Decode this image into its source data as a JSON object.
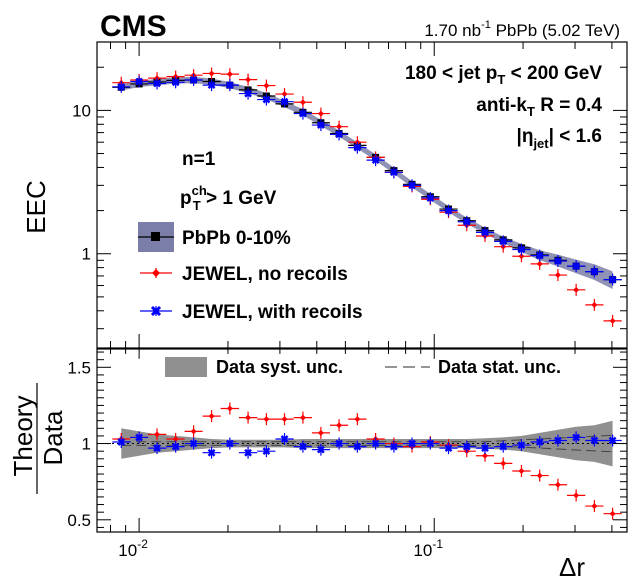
{
  "header": {
    "experiment": "CMS",
    "lumi_value": "1.70 nb",
    "lumi_exp": "-1",
    "lumi_rest": " PbPb (5.02 TeV)"
  },
  "annotations": {
    "pt_range_pre": "180 < jet p",
    "pt_range_sub": "T",
    "pt_range_post": " < 200 GeV",
    "algo_pre": "anti-k",
    "algo_sub": "T",
    "algo_post": " R = 0.4",
    "eta_pre": "|η",
    "eta_sub": "jet",
    "eta_post": "| < 1.6",
    "n_label": "n=1",
    "ptch_pre": "p",
    "ptch_sub": "T",
    "ptch_sup": "ch",
    "ptch_post": " > 1 GeV"
  },
  "legend_top": {
    "data": "PbPb 0-10%",
    "jewel_no": "JEWEL, no recoils",
    "jewel_with": "JEWEL, with recoils"
  },
  "legend_bottom": {
    "syst": "Data syst. unc.",
    "stat": "Data stat. unc."
  },
  "colors": {
    "data": "#000000",
    "band_top": "#7b7ea8",
    "band_bottom": "#909090",
    "jewel_no": "#ff0000",
    "jewel_with": "#0000ff"
  },
  "chart_data": [
    {
      "type": "scatter",
      "panel": "top",
      "ylabel": "EEC",
      "yscale": "log",
      "xscale": "log",
      "xlim": [
        0.0072,
        0.45
      ],
      "ylim": [
        0.22,
        30
      ],
      "ytick_labels": [
        "1",
        "10"
      ],
      "ytick_values": [
        1,
        10
      ],
      "x": [
        0.0087,
        0.01,
        0.0115,
        0.0133,
        0.0153,
        0.0176,
        0.0203,
        0.0234,
        0.027,
        0.0311,
        0.0359,
        0.0413,
        0.0476,
        0.0549,
        0.0633,
        0.073,
        0.0841,
        0.097,
        0.1118,
        0.1289,
        0.1486,
        0.1713,
        0.1975,
        0.2277,
        0.2625,
        0.3026,
        0.3489,
        0.4022
      ],
      "series": [
        {
          "name": "PbPb 0-10%",
          "values": [
            14.5,
            15.3,
            15.8,
            16.2,
            16.3,
            15.9,
            15.0,
            13.9,
            12.6,
            11.1,
            9.7,
            8.2,
            6.9,
            5.7,
            4.7,
            3.8,
            3.05,
            2.5,
            2.05,
            1.7,
            1.45,
            1.25,
            1.1,
            0.98,
            0.9,
            0.82,
            0.75,
            0.66
          ]
        },
        {
          "name": "JEWEL, no recoils",
          "values": [
            15.6,
            16.3,
            16.8,
            17.2,
            17.6,
            18.1,
            17.9,
            16.4,
            14.9,
            13.0,
            11.4,
            9.5,
            7.7,
            6.0,
            4.7,
            3.7,
            2.95,
            2.4,
            1.95,
            1.58,
            1.33,
            1.12,
            0.96,
            0.85,
            0.71,
            0.56,
            0.44,
            0.34
          ]
        },
        {
          "name": "JEWEL, with recoils",
          "values": [
            14.6,
            15.9,
            15.4,
            15.7,
            16.3,
            15.0,
            15.0,
            13.1,
            11.9,
            11.5,
            9.5,
            7.9,
            6.8,
            5.5,
            4.5,
            3.7,
            3.0,
            2.45,
            2.0,
            1.67,
            1.41,
            1.22,
            1.07,
            0.97,
            0.89,
            0.82,
            0.75,
            0.66
          ]
        }
      ]
    },
    {
      "type": "scatter",
      "panel": "bottom",
      "xlabel": "Δr",
      "ylabel_num": "Theory",
      "ylabel_den": "Data",
      "xscale": "log",
      "xlim": [
        0.0072,
        0.45
      ],
      "ylim": [
        0.42,
        1.62
      ],
      "ytick_labels": [
        "0.5",
        "1",
        "1.5"
      ],
      "ytick_values": [
        0.5,
        1.0,
        1.5
      ],
      "xtick_labels": [
        {
          "base": "10",
          "exp": "-2"
        },
        {
          "base": "10",
          "exp": "-1"
        }
      ],
      "xtick_values": [
        0.01,
        0.1
      ],
      "x": [
        0.0087,
        0.01,
        0.0115,
        0.0133,
        0.0153,
        0.0176,
        0.0203,
        0.0234,
        0.027,
        0.0311,
        0.0359,
        0.0413,
        0.0476,
        0.0549,
        0.0633,
        0.073,
        0.0841,
        0.097,
        0.1118,
        0.1289,
        0.1486,
        0.1713,
        0.1975,
        0.2277,
        0.2625,
        0.3026,
        0.3489,
        0.4022
      ],
      "series": [
        {
          "name": "JEWEL, no recoils",
          "values": [
            1.03,
            1.04,
            1.06,
            1.03,
            1.08,
            1.18,
            1.23,
            1.17,
            1.16,
            1.16,
            1.17,
            1.07,
            1.12,
            1.16,
            1.03,
            1.0,
            0.98,
            1.01,
            0.99,
            0.95,
            0.92,
            0.87,
            0.82,
            0.79,
            0.73,
            0.66,
            0.59,
            0.54
          ]
        },
        {
          "name": "JEWEL, with recoils",
          "values": [
            1.01,
            1.04,
            0.97,
            0.98,
            1.0,
            0.94,
            1.0,
            0.94,
            0.95,
            1.03,
            0.98,
            0.96,
            1.0,
            0.98,
            1.0,
            0.98,
            1.0,
            1.0,
            0.97,
            0.98,
            0.97,
            0.98,
            0.99,
            1.01,
            1.02,
            1.04,
            1.02,
            1.02
          ]
        }
      ],
      "syst_band_halfwidth": [
        0.1,
        0.08,
        0.06,
        0.05,
        0.04,
        0.03,
        0.025,
        0.025,
        0.025,
        0.025,
        0.03,
        0.03,
        0.03,
        0.03,
        0.03,
        0.03,
        0.03,
        0.03,
        0.03,
        0.03,
        0.035,
        0.04,
        0.05,
        0.07,
        0.09,
        0.11,
        0.12,
        0.15
      ]
    }
  ]
}
